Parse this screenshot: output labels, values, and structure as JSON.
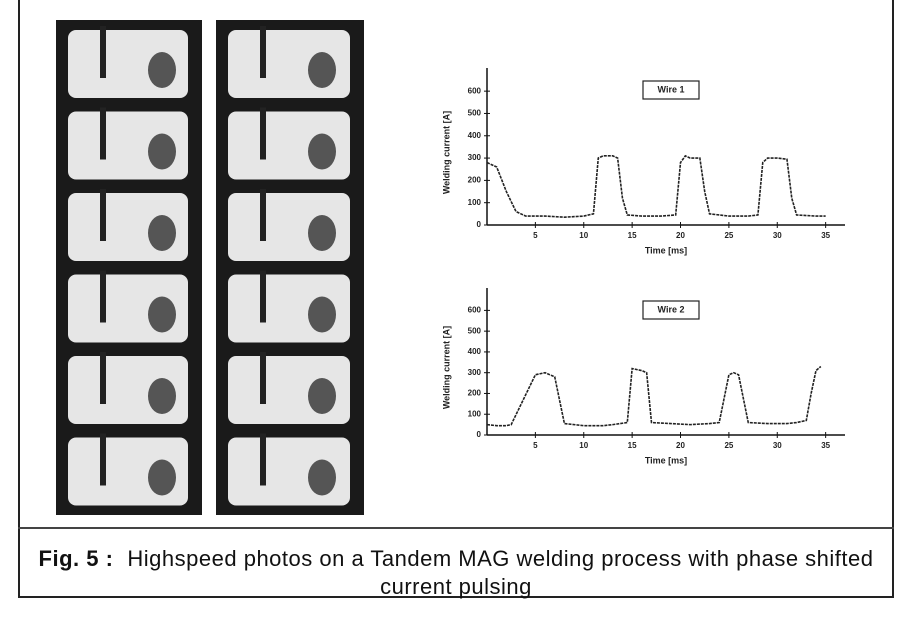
{
  "caption": {
    "label": "Fig. 5 :",
    "text": "Highspeed photos on a Tandem MAG welding process with phase shifted current pulsing"
  },
  "chart_data": [
    {
      "type": "line",
      "xlabel": "Time [ms]",
      "ylabel": "Welding current [A]",
      "x": [
        0,
        1,
        2,
        3,
        4,
        6,
        8,
        10,
        11,
        11.5,
        12,
        13,
        13.5,
        14,
        14.5,
        16,
        18,
        19.5,
        20,
        20.5,
        21,
        22,
        22.5,
        23,
        25,
        27,
        28,
        28.5,
        29,
        30,
        31,
        31.5,
        32,
        34,
        35
      ],
      "series": [
        {
          "name": "Wire 1",
          "color": "#222222",
          "values": [
            280,
            260,
            150,
            60,
            40,
            40,
            35,
            40,
            50,
            300,
            310,
            310,
            300,
            120,
            45,
            40,
            40,
            45,
            280,
            310,
            300,
            300,
            150,
            50,
            40,
            40,
            45,
            280,
            300,
            300,
            295,
            120,
            45,
            40,
            40
          ]
        }
      ],
      "xlim": [
        0,
        37
      ],
      "xticks": [
        5,
        10,
        15,
        20,
        25,
        30,
        35
      ],
      "ylim": [
        0,
        650
      ],
      "yticks": [
        0,
        100,
        200,
        300,
        400,
        500,
        600
      ]
    },
    {
      "type": "line",
      "xlabel": "Time [ms]",
      "ylabel": "Welding current [A]",
      "x": [
        0,
        1,
        2,
        2.5,
        5,
        6,
        7,
        8,
        10,
        12,
        13,
        14.5,
        15,
        16,
        16.5,
        17,
        19,
        21,
        23,
        24,
        25,
        25.5,
        26,
        27,
        29,
        31,
        32,
        33,
        33.5,
        34,
        34.5
      ],
      "series": [
        {
          "name": "Wire 2",
          "color": "#222222",
          "values": [
            50,
            45,
            45,
            50,
            290,
            300,
            280,
            55,
            45,
            45,
            50,
            60,
            320,
            310,
            300,
            60,
            55,
            50,
            55,
            60,
            290,
            300,
            290,
            60,
            55,
            55,
            60,
            70,
            200,
            310,
            330
          ]
        }
      ],
      "xlim": [
        0,
        37
      ],
      "xticks": [
        5,
        10,
        15,
        20,
        25,
        30,
        35
      ],
      "ylim": [
        0,
        650
      ],
      "yticks": [
        0,
        100,
        200,
        300,
        400,
        500,
        600
      ]
    }
  ]
}
